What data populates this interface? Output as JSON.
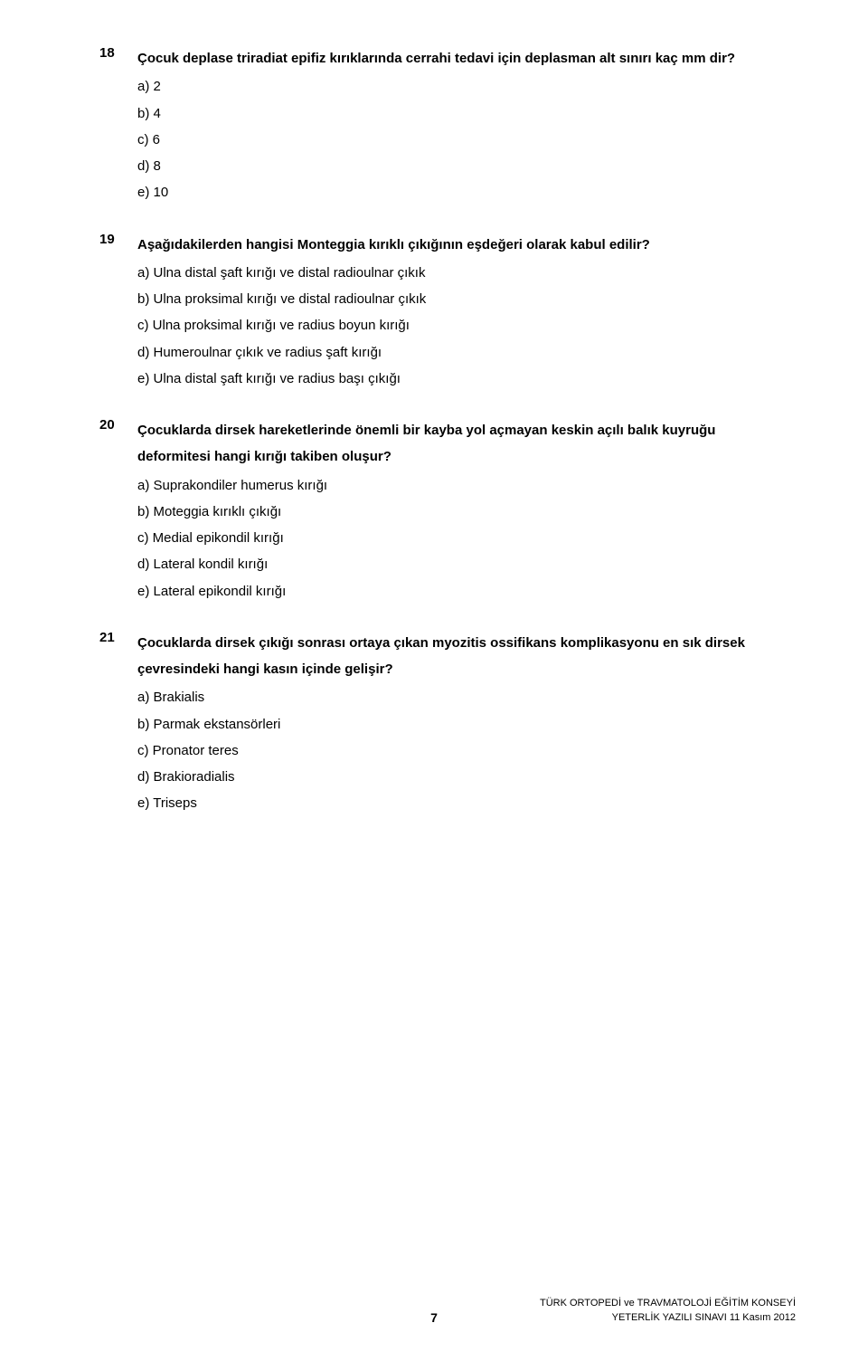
{
  "questions": [
    {
      "num": "18",
      "text": "Çocuk deplase triradiat epifiz kırıklarında cerrahi tedavi için deplasman alt sınırı kaç mm dir?",
      "options": [
        "a) 2",
        "b) 4",
        "c) 6",
        "d) 8",
        "e) 10"
      ]
    },
    {
      "num": "19",
      "text": "Aşağıdakilerden hangisi Monteggia kırıklı çıkığının eşdeğeri olarak kabul edilir?",
      "options": [
        "a) Ulna distal şaft kırığı ve distal radioulnar çıkık",
        "b) Ulna proksimal kırığı ve distal radioulnar çıkık",
        "c) Ulna proksimal kırığı ve radius boyun kırığı",
        "d) Humeroulnar çıkık ve radius şaft kırığı",
        "e) Ulna distal şaft kırığı ve radius başı çıkığı"
      ]
    },
    {
      "num": "20",
      "text": "Çocuklarda dirsek hareketlerinde önemli bir kayba yol açmayan keskin açılı balık kuyruğu deformitesi hangi kırığı takiben oluşur?",
      "options": [
        "a) Suprakondiler humerus kırığı",
        "b) Moteggia kırıklı çıkığı",
        "c) Medial epikondil kırığı",
        "d) Lateral kondil kırığı",
        "e) Lateral epikondil kırığı"
      ]
    },
    {
      "num": "21",
      "text": "Çocuklarda dirsek çıkığı sonrası ortaya çıkan myozitis ossifikans komplikasyonu en sık dirsek çevresindeki hangi kasın içinde gelişir?",
      "options": [
        "a) Brakialis",
        "b) Parmak ekstansörleri",
        "c) Pronator teres",
        "d) Brakioradialis",
        "e) Triseps"
      ]
    }
  ],
  "footer": {
    "pageNumber": "7",
    "line1": "TÜRK ORTOPEDİ ve TRAVMATOLOJİ EĞİTİM KONSEYİ",
    "line2": "YETERLİK YAZILI SINAVI 11 Kasım 2012"
  },
  "style": {
    "background": "#ffffff",
    "textColor": "#000000",
    "questionFontSize": 15,
    "optionFontSize": 15,
    "footerFontSize": 11,
    "lineHeight": 1.95
  }
}
